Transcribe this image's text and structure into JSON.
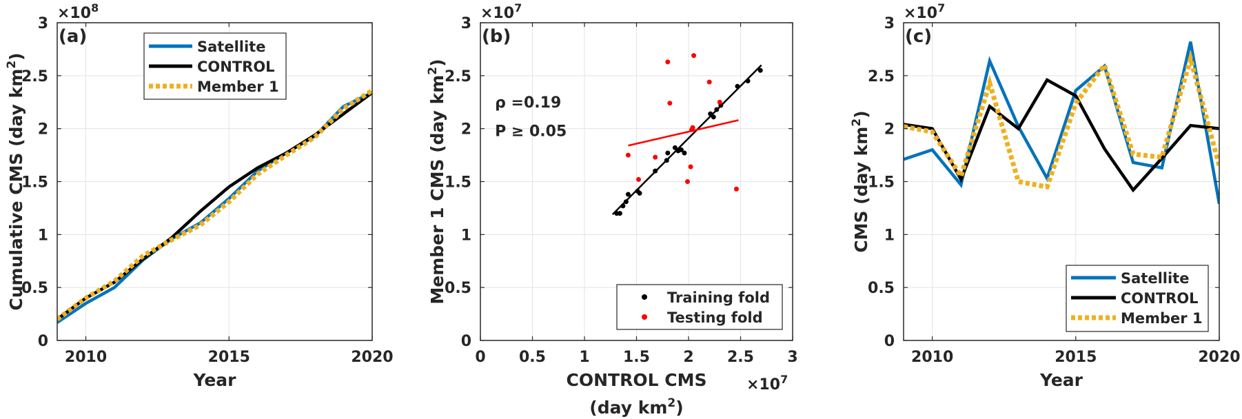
{
  "chart_data": [
    {
      "type": "line",
      "panel_label": "(a)",
      "xlabel": "Year",
      "ylabel": "Cumulative CMS (day km",
      "ylabel_sup": "2",
      "ylabel_end": ")",
      "exponent_base": "×10",
      "exponent_power": "8",
      "xlim": [
        2009,
        2020
      ],
      "ylim": [
        0,
        3
      ],
      "xticks": [
        2010,
        2015,
        2020
      ],
      "xtick_labels": [
        "2010",
        "2015",
        "2020"
      ],
      "yticks": [
        0,
        0.5,
        1,
        1.5,
        2,
        2.5,
        3
      ],
      "ytick_labels": [
        "0",
        "0.5",
        "1",
        "1.5",
        "2",
        "2.5",
        "3"
      ],
      "grid": true,
      "legend_position": "top-right",
      "x": [
        2009,
        2010,
        2011,
        2012,
        2013,
        2014,
        2015,
        2016,
        2017,
        2018,
        2019,
        2020
      ],
      "series": [
        {
          "name": "Satellite",
          "color": "#0072BD",
          "style": "solid",
          "values": [
            0.17,
            0.35,
            0.5,
            0.76,
            0.96,
            1.11,
            1.34,
            1.6,
            1.77,
            1.93,
            2.21,
            2.34
          ]
        },
        {
          "name": "CONTROL",
          "color": "#000000",
          "style": "solid",
          "values": [
            0.2,
            0.4,
            0.55,
            0.77,
            0.97,
            1.22,
            1.45,
            1.63,
            1.77,
            1.94,
            2.14,
            2.34
          ]
        },
        {
          "name": "Member 1",
          "color": "#EDB120",
          "style": "dotted",
          "values": [
            0.2,
            0.4,
            0.56,
            0.8,
            0.95,
            1.09,
            1.31,
            1.57,
            1.75,
            1.92,
            2.19,
            2.36
          ]
        }
      ]
    },
    {
      "type": "scatter",
      "panel_label": "(b)",
      "xlabel": "CONTROL CMS",
      "xlabel2": "(day km",
      "xlabel2_sup": "2",
      "xlabel2_end": ")",
      "ylabel": "Member 1 CMS (day km",
      "ylabel_sup": "2",
      "ylabel_end": ")",
      "exponent_base": "×10",
      "exponent_power": "7",
      "xlim": [
        0,
        3
      ],
      "ylim": [
        0,
        3
      ],
      "xticks": [
        0,
        0.5,
        1,
        1.5,
        2,
        2.5,
        3
      ],
      "xtick_labels": [
        "0",
        "0.5",
        "1",
        "1.5",
        "2",
        "2.5",
        "3"
      ],
      "yticks": [
        0,
        0.5,
        1,
        1.5,
        2,
        2.5,
        3
      ],
      "ytick_labels": [
        "0",
        "0.5",
        "1",
        "1.5",
        "2",
        "2.5",
        "3"
      ],
      "grid": true,
      "legend_position": "bottom-right",
      "annotations": [
        "ρ =0.19",
        "P ≥ 0.05"
      ],
      "annotation_color": "#FF0000",
      "series": [
        {
          "name": "Training fold",
          "color": "#000000",
          "x": [
            1.31,
            1.34,
            1.37,
            1.4,
            1.42,
            1.51,
            1.53,
            1.68,
            1.79,
            1.8,
            1.87,
            1.9,
            1.93,
            1.96,
            2.21,
            2.24,
            2.27,
            2.31,
            2.47,
            2.57,
            2.69
          ],
          "y": [
            1.2,
            1.2,
            1.27,
            1.31,
            1.38,
            1.41,
            1.39,
            1.6,
            1.7,
            1.77,
            1.82,
            1.79,
            1.8,
            1.77,
            2.14,
            2.11,
            2.18,
            2.22,
            2.4,
            2.45,
            2.55
          ]
        },
        {
          "name": "Testing fold",
          "color": "#FF0000",
          "x": [
            1.42,
            1.52,
            1.68,
            1.8,
            1.82,
            1.99,
            2.02,
            2.03,
            2.04,
            2.05,
            2.2,
            2.3,
            2.46
          ],
          "y": [
            1.75,
            1.52,
            1.73,
            2.63,
            2.24,
            1.5,
            1.64,
            1.99,
            2.01,
            2.69,
            2.44,
            2.25,
            1.43
          ]
        }
      ],
      "fit_lines": [
        {
          "color": "#000000",
          "x": [
            1.27,
            2.7
          ],
          "y": [
            1.19,
            2.6
          ]
        },
        {
          "color": "#FF0000",
          "x": [
            1.42,
            2.48
          ],
          "y": [
            1.84,
            2.08
          ]
        }
      ]
    },
    {
      "type": "line",
      "panel_label": "(c)",
      "xlabel": "Year",
      "ylabel": "CMS (day km",
      "ylabel_sup": "2",
      "ylabel_end": ")",
      "exponent_base": "×10",
      "exponent_power": "7",
      "xlim": [
        2009,
        2020
      ],
      "ylim": [
        0,
        3
      ],
      "xticks": [
        2010,
        2015,
        2020
      ],
      "xtick_labels": [
        "2010",
        "2015",
        "2020"
      ],
      "yticks": [
        0,
        0.5,
        1,
        1.5,
        2,
        2.5,
        3
      ],
      "ytick_labels": [
        "0",
        "0.5",
        "1",
        "1.5",
        "2",
        "2.5",
        "3"
      ],
      "grid": true,
      "legend_position": "bottom-right",
      "x": [
        2009,
        2010,
        2011,
        2012,
        2013,
        2014,
        2015,
        2016,
        2017,
        2018,
        2019,
        2020
      ],
      "series": [
        {
          "name": "Satellite",
          "color": "#0072BD",
          "style": "solid",
          "values": [
            1.71,
            1.8,
            1.47,
            2.64,
            2.02,
            1.53,
            2.36,
            2.59,
            1.68,
            1.63,
            2.82,
            1.29
          ]
        },
        {
          "name": "CONTROL",
          "color": "#000000",
          "style": "solid",
          "values": [
            2.04,
            2.0,
            1.52,
            2.21,
            2.0,
            2.46,
            2.31,
            1.81,
            1.42,
            1.72,
            2.03,
            2.0
          ]
        },
        {
          "name": "Member 1",
          "color": "#EDB120",
          "style": "dotted",
          "values": [
            2.02,
            1.97,
            1.55,
            2.43,
            1.5,
            1.45,
            2.24,
            2.6,
            1.76,
            1.73,
            2.66,
            1.65
          ]
        }
      ]
    }
  ]
}
